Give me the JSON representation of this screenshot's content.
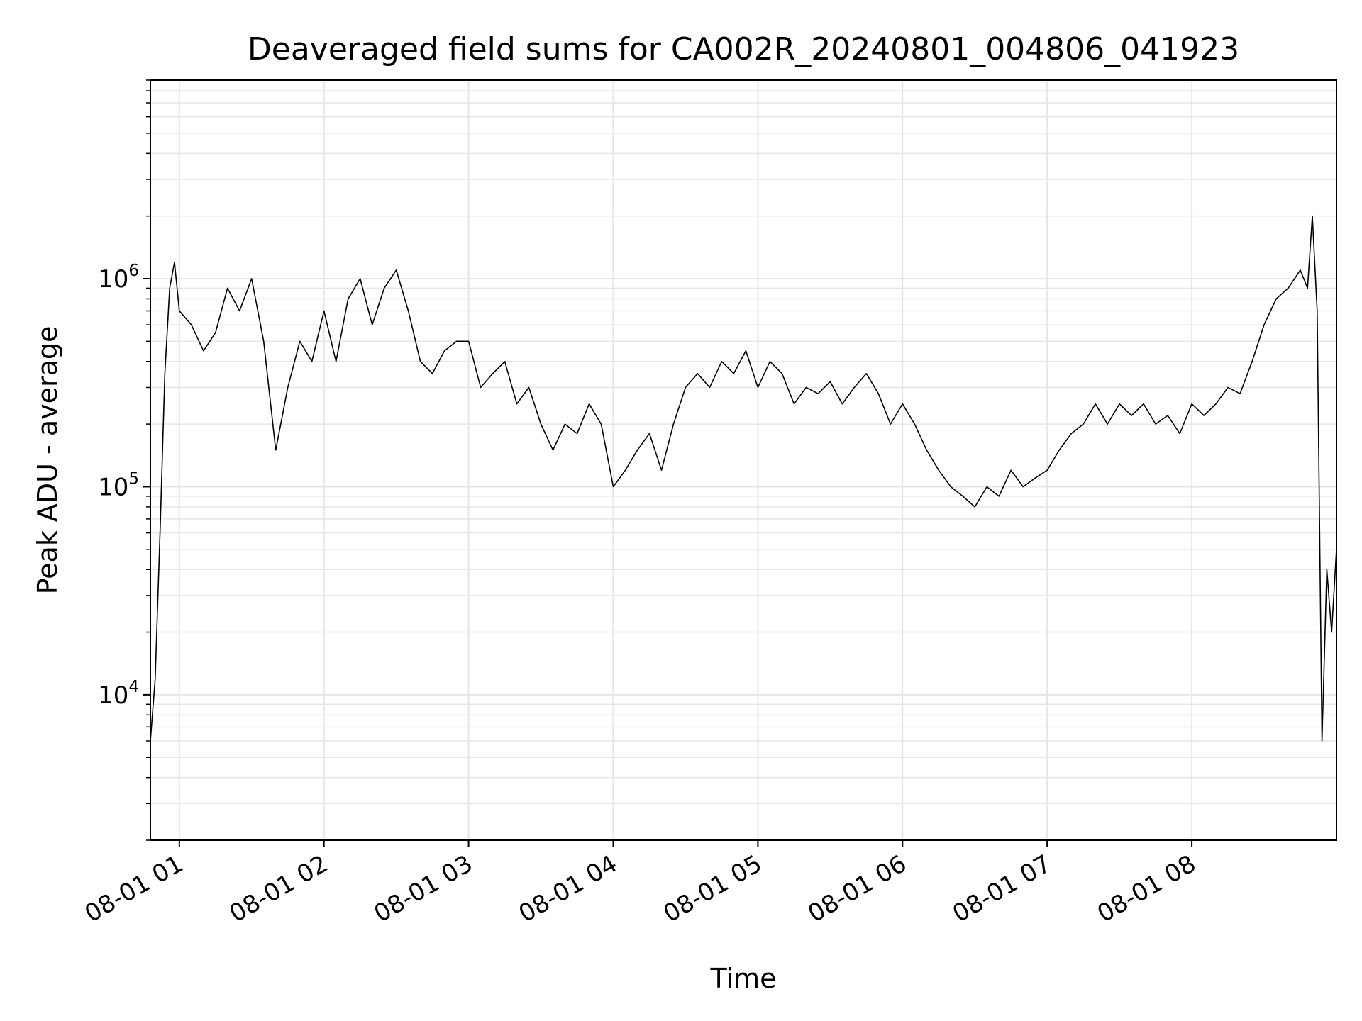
{
  "chart_data": {
    "type": "line",
    "title": "Deaveraged field sums for CA002R_20240801_004806_041923",
    "xlabel": "Time",
    "ylabel": "Peak ADU - average",
    "yscale": "log",
    "ylim": [
      2000,
      9000000
    ],
    "xlim": [
      "2024-08-01 00:48",
      "2024-08-01 09:00"
    ],
    "grid": true,
    "x_ticks": [
      {
        "at": "2024-08-01 01:00",
        "label": "08-01 01"
      },
      {
        "at": "2024-08-01 02:00",
        "label": "08-01 02"
      },
      {
        "at": "2024-08-01 03:00",
        "label": "08-01 03"
      },
      {
        "at": "2024-08-01 04:00",
        "label": "08-01 04"
      },
      {
        "at": "2024-08-01 05:00",
        "label": "08-01 05"
      },
      {
        "at": "2024-08-01 06:00",
        "label": "08-01 06"
      },
      {
        "at": "2024-08-01 07:00",
        "label": "08-01 07"
      },
      {
        "at": "2024-08-01 08:00",
        "label": "08-01 08"
      }
    ],
    "y_ticks": [
      {
        "at": 10000,
        "base": "10",
        "exp": "4"
      },
      {
        "at": 100000,
        "base": "10",
        "exp": "5"
      },
      {
        "at": 1000000,
        "base": "10",
        "exp": "6"
      }
    ],
    "series": [
      {
        "color": "#000000",
        "x": [
          "2024-08-01 00:48",
          "2024-08-01 00:50",
          "2024-08-01 00:52",
          "2024-08-01 00:54",
          "2024-08-01 00:56",
          "2024-08-01 00:58",
          "2024-08-01 01:00",
          "2024-08-01 01:05",
          "2024-08-01 01:10",
          "2024-08-01 01:15",
          "2024-08-01 01:20",
          "2024-08-01 01:25",
          "2024-08-01 01:30",
          "2024-08-01 01:35",
          "2024-08-01 01:40",
          "2024-08-01 01:45",
          "2024-08-01 01:50",
          "2024-08-01 01:55",
          "2024-08-01 02:00",
          "2024-08-01 02:05",
          "2024-08-01 02:10",
          "2024-08-01 02:15",
          "2024-08-01 02:20",
          "2024-08-01 02:25",
          "2024-08-01 02:30",
          "2024-08-01 02:35",
          "2024-08-01 02:40",
          "2024-08-01 02:45",
          "2024-08-01 02:50",
          "2024-08-01 02:55",
          "2024-08-01 03:00",
          "2024-08-01 03:05",
          "2024-08-01 03:10",
          "2024-08-01 03:15",
          "2024-08-01 03:20",
          "2024-08-01 03:25",
          "2024-08-01 03:30",
          "2024-08-01 03:35",
          "2024-08-01 03:40",
          "2024-08-01 03:45",
          "2024-08-01 03:50",
          "2024-08-01 03:55",
          "2024-08-01 04:00",
          "2024-08-01 04:05",
          "2024-08-01 04:10",
          "2024-08-01 04:15",
          "2024-08-01 04:20",
          "2024-08-01 04:25",
          "2024-08-01 04:30",
          "2024-08-01 04:35",
          "2024-08-01 04:40",
          "2024-08-01 04:45",
          "2024-08-01 04:50",
          "2024-08-01 04:55",
          "2024-08-01 05:00",
          "2024-08-01 05:05",
          "2024-08-01 05:10",
          "2024-08-01 05:15",
          "2024-08-01 05:20",
          "2024-08-01 05:25",
          "2024-08-01 05:30",
          "2024-08-01 05:35",
          "2024-08-01 05:40",
          "2024-08-01 05:45",
          "2024-08-01 05:50",
          "2024-08-01 05:55",
          "2024-08-01 06:00",
          "2024-08-01 06:05",
          "2024-08-01 06:10",
          "2024-08-01 06:15",
          "2024-08-01 06:20",
          "2024-08-01 06:25",
          "2024-08-01 06:30",
          "2024-08-01 06:35",
          "2024-08-01 06:40",
          "2024-08-01 06:45",
          "2024-08-01 06:50",
          "2024-08-01 06:55",
          "2024-08-01 07:00",
          "2024-08-01 07:05",
          "2024-08-01 07:10",
          "2024-08-01 07:15",
          "2024-08-01 07:20",
          "2024-08-01 07:25",
          "2024-08-01 07:30",
          "2024-08-01 07:35",
          "2024-08-01 07:40",
          "2024-08-01 07:45",
          "2024-08-01 07:50",
          "2024-08-01 07:55",
          "2024-08-01 08:00",
          "2024-08-01 08:05",
          "2024-08-01 08:10",
          "2024-08-01 08:15",
          "2024-08-01 08:20",
          "2024-08-01 08:25",
          "2024-08-01 08:30",
          "2024-08-01 08:35",
          "2024-08-01 08:40",
          "2024-08-01 08:45",
          "2024-08-01 08:48",
          "2024-08-01 08:50",
          "2024-08-01 08:52",
          "2024-08-01 08:54",
          "2024-08-01 08:56",
          "2024-08-01 08:58",
          "2024-08-01 09:00"
        ],
        "y": [
          6000,
          12000,
          60000,
          350000,
          900000,
          1200000,
          700000,
          600000,
          450000,
          550000,
          900000,
          700000,
          1000000,
          500000,
          150000,
          300000,
          500000,
          400000,
          700000,
          400000,
          800000,
          1000000,
          600000,
          900000,
          1100000,
          700000,
          400000,
          350000,
          450000,
          500000,
          500000,
          300000,
          350000,
          400000,
          250000,
          300000,
          200000,
          150000,
          200000,
          180000,
          250000,
          200000,
          100000,
          120000,
          150000,
          180000,
          120000,
          200000,
          300000,
          350000,
          300000,
          400000,
          350000,
          450000,
          300000,
          400000,
          350000,
          250000,
          300000,
          280000,
          320000,
          250000,
          300000,
          350000,
          280000,
          200000,
          250000,
          200000,
          150000,
          120000,
          100000,
          90000,
          80000,
          100000,
          90000,
          120000,
          100000,
          110000,
          120000,
          150000,
          180000,
          200000,
          250000,
          200000,
          250000,
          220000,
          250000,
          200000,
          220000,
          180000,
          250000,
          220000,
          250000,
          300000,
          280000,
          400000,
          600000,
          800000,
          900000,
          1100000,
          900000,
          2000000,
          700000,
          6000,
          40000,
          20000,
          50000
        ]
      }
    ]
  }
}
